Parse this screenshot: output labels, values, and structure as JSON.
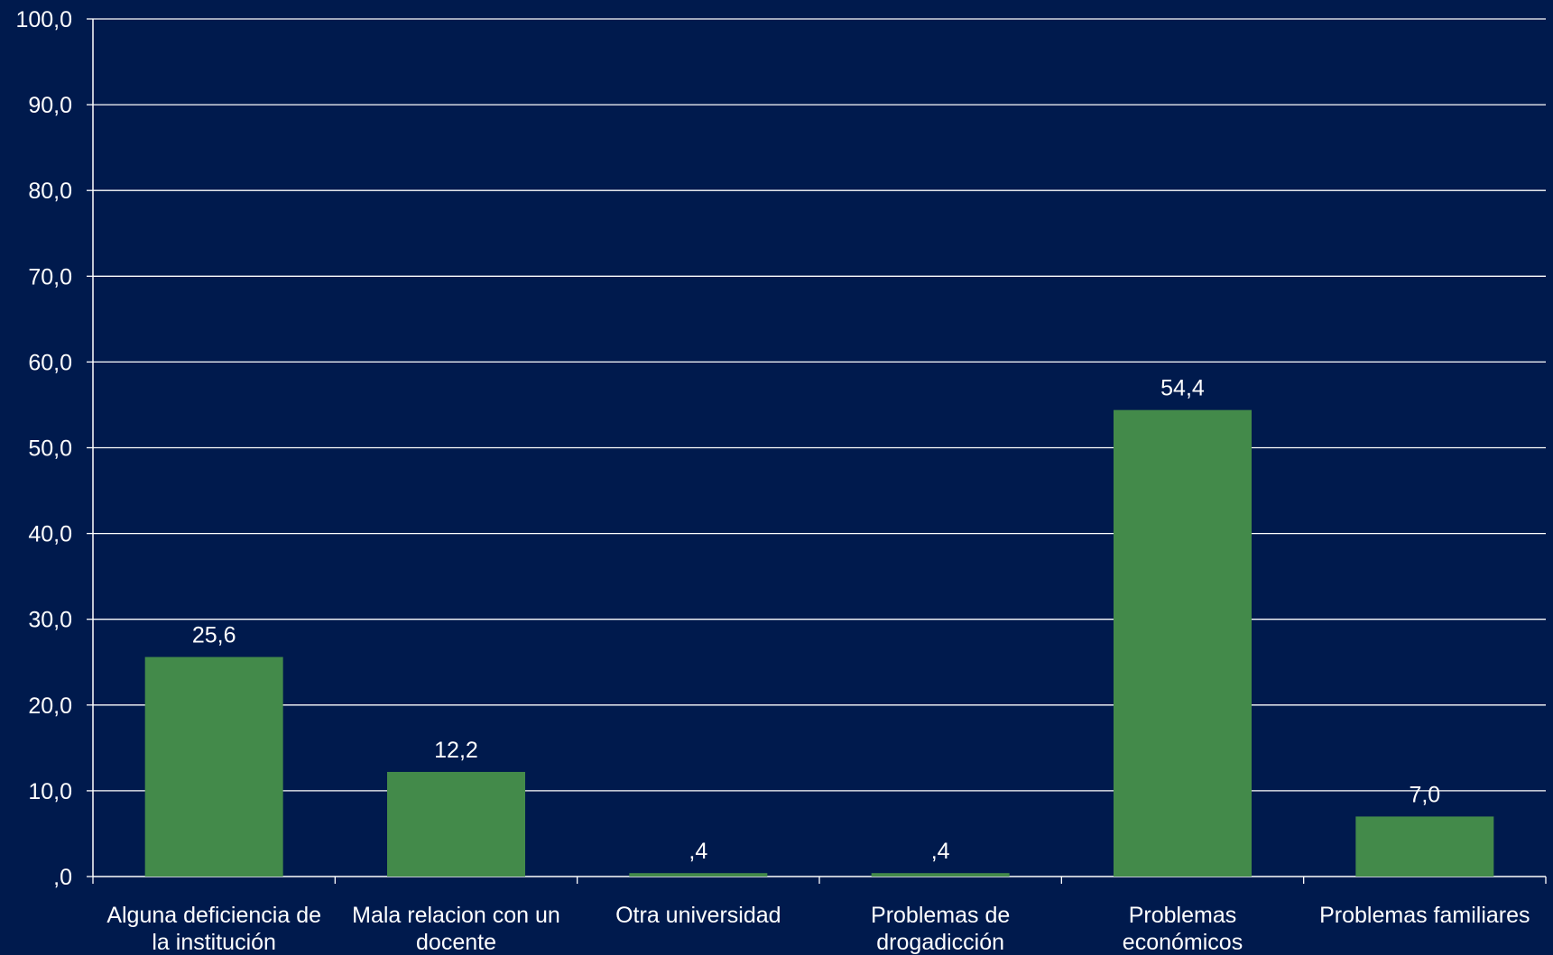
{
  "colors": {
    "background": "#001a4d",
    "bar": "#438a4a",
    "grid": "#ffffff",
    "text": "#ffffff"
  },
  "chart_data": {
    "type": "bar",
    "categories": [
      [
        "Alguna deficiencia de",
        "la institución"
      ],
      [
        "Mala relacion con un",
        "docente"
      ],
      [
        "Otra universidad"
      ],
      [
        "Problemas de",
        "drogadicción"
      ],
      [
        "Problemas",
        "económicos"
      ],
      [
        "Problemas familiares"
      ]
    ],
    "values": [
      25.6,
      12.2,
      0.4,
      0.4,
      54.4,
      7.0
    ],
    "value_labels": [
      "25,6",
      "12,2",
      ",4",
      ",4",
      "54,4",
      "7,0"
    ],
    "ylim": [
      0,
      100
    ],
    "yticks": [
      0,
      10,
      20,
      30,
      40,
      50,
      60,
      70,
      80,
      90,
      100
    ],
    "ytick_labels": [
      ",0",
      "10,0",
      "20,0",
      "30,0",
      "40,0",
      "50,0",
      "60,0",
      "70,0",
      "80,0",
      "90,0",
      "100,0"
    ],
    "grid": true,
    "legend": "none",
    "title": "",
    "xlabel": "",
    "ylabel": ""
  }
}
